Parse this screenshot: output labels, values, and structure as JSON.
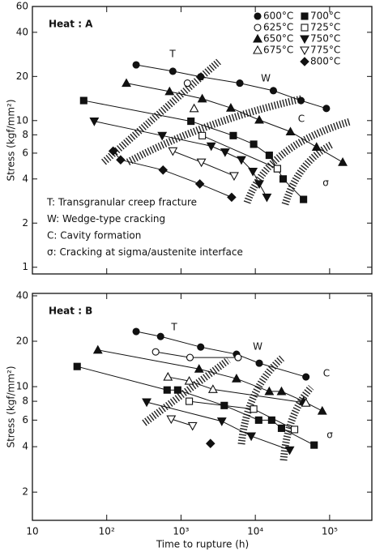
{
  "chart_data": [
    {
      "type": "line",
      "title": "Heat : A",
      "ylabel": "Stress (kgf/mm²)",
      "log_x": true,
      "log_y": true,
      "xlim": [
        10,
        370000
      ],
      "ylim": [
        0.9,
        60
      ],
      "xticks": [
        10,
        100,
        1000,
        10000,
        100000
      ],
      "yticks": [
        1,
        2,
        4,
        6,
        8,
        10,
        20,
        40,
        60
      ],
      "legend": "upper right",
      "annotations": [
        "T",
        "W",
        "C",
        "σ"
      ],
      "notes": [
        "T: Transgranular creep fracture",
        "W: Wedge-type cracking",
        "C: Cavity formation",
        "σ: Cracking at sigma/austenite interface"
      ],
      "series": [
        {
          "name": "600°C",
          "color": "#111",
          "marker": "circle",
          "filled": true,
          "x": [
            249,
            776,
            1840,
            6180,
            17500,
            41200,
            90400
          ],
          "values": [
            24,
            21.7,
            19.9,
            18,
            16,
            13.7,
            12.1
          ]
        },
        {
          "name": "625°C",
          "color": "#111",
          "marker": "circle",
          "filled": false,
          "x": [
            1220
          ],
          "values": [
            18
          ]
        },
        {
          "name": "650°C",
          "color": "#111",
          "marker": "triangle",
          "filled": true,
          "x": [
            184,
            701,
            1930,
            4680,
            11300,
            29700,
            66700,
            150000
          ],
          "values": [
            18,
            15.8,
            14.1,
            12.2,
            10.1,
            8.4,
            6.6,
            5.2
          ]
        },
        {
          "name": "675°C",
          "color": "#111",
          "marker": "triangle",
          "filled": false,
          "x": [
            1500
          ],
          "values": [
            12.1
          ]
        },
        {
          "name": "700°C",
          "color": "#111",
          "marker": "square",
          "filled": true,
          "x": [
            49,
            1360,
            5050,
            9500,
            15400,
            19800,
            23700,
            44500
          ],
          "values": [
            13.7,
            9.9,
            7.9,
            6.9,
            5.8,
            4.7,
            4,
            2.9
          ]
        },
        {
          "name": "725°C",
          "color": "#111",
          "marker": "square",
          "filled": false,
          "x": [
            1930,
            19800
          ],
          "values": [
            7.9,
            4.7
          ]
        },
        {
          "name": "750°C",
          "color": "#111",
          "marker": "triangle-down",
          "filled": true,
          "x": [
            68,
            558,
            2550,
            3920,
            6500,
            9270,
            11300,
            14300
          ],
          "values": [
            9.9,
            7.9,
            6.7,
            6.1,
            5.4,
            4.5,
            3.7,
            3
          ]
        },
        {
          "name": "775°C",
          "color": "#111",
          "marker": "triangle-down",
          "filled": false,
          "x": [
            776,
            1880,
            5180
          ],
          "values": [
            6.2,
            5.2,
            4.2
          ]
        },
        {
          "name": "800°C",
          "color": "#111",
          "marker": "diamond",
          "filled": true,
          "x": [
            122,
            154,
            573,
            1790,
            4800
          ],
          "values": [
            6.2,
            5.4,
            4.6,
            3.7,
            3
          ]
        }
      ]
    },
    {
      "type": "line",
      "title": "Heat : B",
      "ylabel": "Stress (kgf/mm²)",
      "xlabel": "Time to rupture (h)",
      "log_x": true,
      "log_y": true,
      "xlim": [
        10,
        370000
      ],
      "ylim": [
        1.3,
        41.5
      ],
      "xticks": [
        10,
        {
          "value": 100,
          "label": "10²"
        },
        {
          "value": 1000,
          "label": "10³"
        },
        {
          "value": 10000,
          "label": "10⁴"
        },
        {
          "value": 100000,
          "label": "10⁵"
        }
      ],
      "yticks": [
        2,
        4,
        6,
        8,
        10,
        20,
        40
      ],
      "annotations": [
        "T",
        "W",
        "C",
        "σ"
      ],
      "series": [
        {
          "color": "#111",
          "marker": "circle",
          "filled": true,
          "x": [
            249,
            531,
            1840,
            5580,
            11300,
            48000
          ],
          "values": [
            23.2,
            21.5,
            18.3,
            16.4,
            14.3,
            11.6
          ]
        },
        {
          "color": "#111",
          "marker": "circle",
          "filled": false,
          "x": [
            456,
            1320,
            5870
          ],
          "values": [
            17,
            15.6,
            15.6
          ]
        },
        {
          "color": "#111",
          "marker": "triangle",
          "filled": true,
          "x": [
            76,
            1750,
            5580,
            15400,
            22500,
            44500,
            79600
          ],
          "values": [
            17.5,
            13.1,
            11.3,
            9.3,
            9.3,
            8,
            6.9
          ]
        },
        {
          "color": "#111",
          "marker": "triangle",
          "filled": false,
          "x": [
            667,
            1290,
            2690,
            48000
          ],
          "values": [
            11.6,
            10.9,
            9.6,
            7.8
          ]
        },
        {
          "color": "#111",
          "marker": "square",
          "filled": true,
          "x": [
            40,
            650,
            903,
            3820,
            11100,
            16600,
            22500,
            61800
          ],
          "values": [
            13.6,
            9.5,
            9.5,
            7.5,
            6,
            6,
            5.3,
            4.1
          ]
        },
        {
          "color": "#111",
          "marker": "square",
          "filled": false,
          "x": [
            1290,
            9500,
            33700
          ],
          "values": [
            8,
            7.1,
            5.2
          ]
        },
        {
          "color": "#111",
          "marker": "triangle-down",
          "filled": true,
          "x": [
            345,
            3540,
            8810,
            29000
          ],
          "values": [
            7.9,
            5.9,
            4.7,
            3.8
          ]
        },
        {
          "color": "#111",
          "marker": "triangle-down",
          "filled": false,
          "x": [
            738,
            1430
          ],
          "values": [
            6.1,
            5.5
          ]
        },
        {
          "color": "#111",
          "marker": "diamond",
          "filled": true,
          "x": [
            2490
          ],
          "values": [
            4.2
          ]
        }
      ]
    }
  ]
}
